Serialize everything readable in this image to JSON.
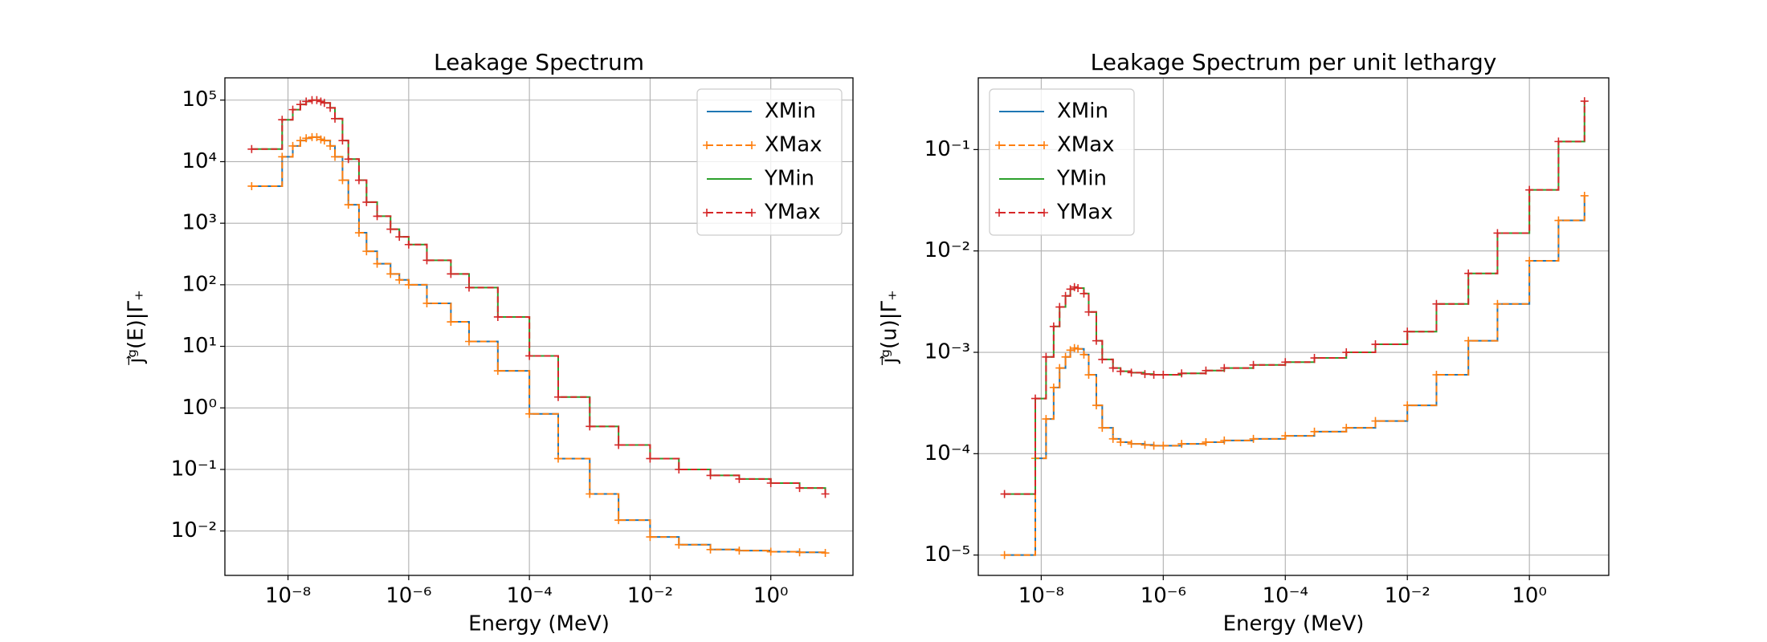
{
  "chart_data": [
    {
      "type": "line",
      "title": "Leakage Spectrum",
      "xlabel": "Energy (MeV)",
      "ylabel": "j⃗ᵍ(E)|Γ₊",
      "xscale": "log",
      "yscale": "log",
      "grid": true,
      "legend": "upper right",
      "drawstyle": "steps-post",
      "xlim": [
        9e-10,
        23
      ],
      "ylim": [
        0.0019,
        230000.0
      ],
      "xticks": [
        {
          "value": 1e-08,
          "label": "10⁻⁸"
        },
        {
          "value": 1e-06,
          "label": "10⁻⁶"
        },
        {
          "value": 0.0001,
          "label": "10⁻⁴"
        },
        {
          "value": 0.01,
          "label": "10⁻²"
        },
        {
          "value": 1,
          "label": "10⁰"
        }
      ],
      "yticks": [
        {
          "value": 0.01,
          "label": "10⁻²"
        },
        {
          "value": 0.1,
          "label": "10⁻¹"
        },
        {
          "value": 1,
          "label": "10⁰"
        },
        {
          "value": 10,
          "label": "10¹"
        },
        {
          "value": 100,
          "label": "10²"
        },
        {
          "value": 1000,
          "label": "10³"
        },
        {
          "value": 10000,
          "label": "10⁴"
        },
        {
          "value": 100000,
          "label": "10⁵"
        }
      ],
      "x": [
        2.5e-09,
        8e-09,
        1.2e-08,
        1.6e-08,
        2e-08,
        2.5e-08,
        3e-08,
        3.5e-08,
        4e-08,
        5e-08,
        6e-08,
        8e-08,
        1e-07,
        1.5e-07,
        2e-07,
        3e-07,
        5e-07,
        7e-07,
        1e-06,
        2e-06,
        5e-06,
        1e-05,
        3e-05,
        0.0001,
        0.0003,
        0.001,
        0.003,
        0.01,
        0.03,
        0.1,
        0.3,
        1,
        3,
        8
      ],
      "series": [
        {
          "name": "XMin",
          "color": "#1f77b4",
          "linestyle": "solid",
          "markers": false,
          "values": [
            4000.0,
            12000.0,
            18000.0,
            22000.0,
            24000.0,
            25000.0,
            25000.0,
            23000.0,
            22000.0,
            18000.0,
            12000.0,
            5000.0,
            2000.0,
            700.0,
            350.0,
            220.0,
            150.0,
            120.0,
            100.0,
            50.0,
            25.0,
            12.0,
            4,
            0.8,
            0.15,
            0.04,
            0.015,
            0.008,
            0.006,
            0.005,
            0.0048,
            0.0046,
            0.0045,
            0.0044
          ]
        },
        {
          "name": "XMax",
          "color": "#ff7f0e",
          "linestyle": "dashed",
          "markers": true,
          "values": [
            4000.0,
            12000.0,
            18000.0,
            22000.0,
            24000.0,
            25000.0,
            25000.0,
            23000.0,
            22000.0,
            18000.0,
            12000.0,
            5000.0,
            2000.0,
            700.0,
            350.0,
            220.0,
            150.0,
            120.0,
            100.0,
            50.0,
            25.0,
            12.0,
            4,
            0.8,
            0.15,
            0.04,
            0.015,
            0.008,
            0.006,
            0.005,
            0.0048,
            0.0046,
            0.0045,
            0.0044
          ]
        },
        {
          "name": "YMin",
          "color": "#2ca02c",
          "linestyle": "solid",
          "markers": false,
          "values": [
            16000.0,
            48000.0,
            70000.0,
            85000.0,
            95000.0,
            100000.0,
            100000.0,
            95000.0,
            90000.0,
            75000.0,
            50000.0,
            22000.0,
            11000.0,
            5000.0,
            2200.0,
            1300.0,
            800.0,
            600.0,
            450.0,
            250.0,
            150.0,
            90.0,
            30.0,
            7,
            1.5,
            0.5,
            0.25,
            0.15,
            0.1,
            0.08,
            0.07,
            0.06,
            0.05,
            0.04
          ]
        },
        {
          "name": "YMax",
          "color": "#d62728",
          "linestyle": "dashed",
          "markers": true,
          "values": [
            16000.0,
            48000.0,
            70000.0,
            85000.0,
            95000.0,
            100000.0,
            100000.0,
            95000.0,
            90000.0,
            75000.0,
            50000.0,
            22000.0,
            11000.0,
            5000.0,
            2200.0,
            1300.0,
            800.0,
            600.0,
            450.0,
            250.0,
            150.0,
            90.0,
            30.0,
            7,
            1.5,
            0.5,
            0.25,
            0.15,
            0.1,
            0.08,
            0.07,
            0.06,
            0.05,
            0.04
          ]
        }
      ]
    },
    {
      "type": "line",
      "title": "Leakage Spectrum per unit lethargy",
      "xlabel": "Energy (MeV)",
      "ylabel": "j⃗ᵍ(u)|Γ₊",
      "xscale": "log",
      "yscale": "log",
      "grid": true,
      "legend": "upper left",
      "drawstyle": "steps-post",
      "xlim": [
        9.3e-10,
        20
      ],
      "ylim": [
        6.3e-06,
        0.51
      ],
      "xticks": [
        {
          "value": 1e-08,
          "label": "10⁻⁸"
        },
        {
          "value": 1e-06,
          "label": "10⁻⁶"
        },
        {
          "value": 0.0001,
          "label": "10⁻⁴"
        },
        {
          "value": 0.01,
          "label": "10⁻²"
        },
        {
          "value": 1,
          "label": "10⁰"
        }
      ],
      "yticks": [
        {
          "value": 1e-05,
          "label": "10⁻⁵"
        },
        {
          "value": 0.0001,
          "label": "10⁻⁴"
        },
        {
          "value": 0.001,
          "label": "10⁻³"
        },
        {
          "value": 0.01,
          "label": "10⁻²"
        },
        {
          "value": 0.1,
          "label": "10⁻¹"
        }
      ],
      "x": [
        2.5e-09,
        8e-09,
        1.2e-08,
        1.6e-08,
        2e-08,
        2.5e-08,
        3e-08,
        3.5e-08,
        4e-08,
        5e-08,
        6e-08,
        8e-08,
        1e-07,
        1.5e-07,
        2e-07,
        3e-07,
        5e-07,
        7e-07,
        1e-06,
        2e-06,
        5e-06,
        1e-05,
        3e-05,
        0.0001,
        0.0003,
        0.001,
        0.003,
        0.01,
        0.03,
        0.1,
        0.3,
        1,
        3,
        8
      ],
      "series": [
        {
          "name": "XMin",
          "color": "#1f77b4",
          "linestyle": "solid",
          "markers": false,
          "values": [
            1e-05,
            9e-05,
            0.00022,
            0.00045,
            0.0007,
            0.0009,
            0.00105,
            0.0011,
            0.00108,
            0.00095,
            0.0006,
            0.0003,
            0.00018,
            0.00014,
            0.00013,
            0.000125,
            0.000122,
            0.00012,
            0.00012,
            0.000125,
            0.00013,
            0.000135,
            0.00014,
            0.00015,
            0.000165,
            0.00018,
            0.00021,
            0.0003,
            0.0006,
            0.0013,
            0.003,
            0.008,
            0.02,
            0.035
          ]
        },
        {
          "name": "XMax",
          "color": "#ff7f0e",
          "linestyle": "dashed",
          "markers": true,
          "values": [
            1e-05,
            9e-05,
            0.00022,
            0.00045,
            0.0007,
            0.0009,
            0.00105,
            0.0011,
            0.00108,
            0.00095,
            0.0006,
            0.0003,
            0.00018,
            0.00014,
            0.00013,
            0.000125,
            0.000122,
            0.00012,
            0.00012,
            0.000125,
            0.00013,
            0.000135,
            0.00014,
            0.00015,
            0.000165,
            0.00018,
            0.00021,
            0.0003,
            0.0006,
            0.0013,
            0.003,
            0.008,
            0.02,
            0.035
          ]
        },
        {
          "name": "YMin",
          "color": "#2ca02c",
          "linestyle": "solid",
          "markers": false,
          "values": [
            4e-05,
            0.00035,
            0.0009,
            0.0018,
            0.0028,
            0.0036,
            0.0042,
            0.0044,
            0.0043,
            0.0038,
            0.0025,
            0.0013,
            0.00085,
            0.0007,
            0.00065,
            0.00063,
            0.00061,
            0.0006,
            0.0006,
            0.00062,
            0.00066,
            0.0007,
            0.00075,
            0.0008,
            0.00088,
            0.001,
            0.0012,
            0.0016,
            0.003,
            0.006,
            0.015,
            0.04,
            0.12,
            0.3
          ]
        },
        {
          "name": "YMax",
          "color": "#d62728",
          "linestyle": "dashed",
          "markers": true,
          "values": [
            4e-05,
            0.00035,
            0.0009,
            0.0018,
            0.0028,
            0.0036,
            0.0042,
            0.0044,
            0.0043,
            0.0038,
            0.0025,
            0.0013,
            0.00085,
            0.0007,
            0.00065,
            0.00063,
            0.00061,
            0.0006,
            0.0006,
            0.00062,
            0.00066,
            0.0007,
            0.00075,
            0.0008,
            0.00088,
            0.001,
            0.0012,
            0.0016,
            0.003,
            0.006,
            0.015,
            0.04,
            0.12,
            0.3
          ]
        }
      ]
    }
  ]
}
